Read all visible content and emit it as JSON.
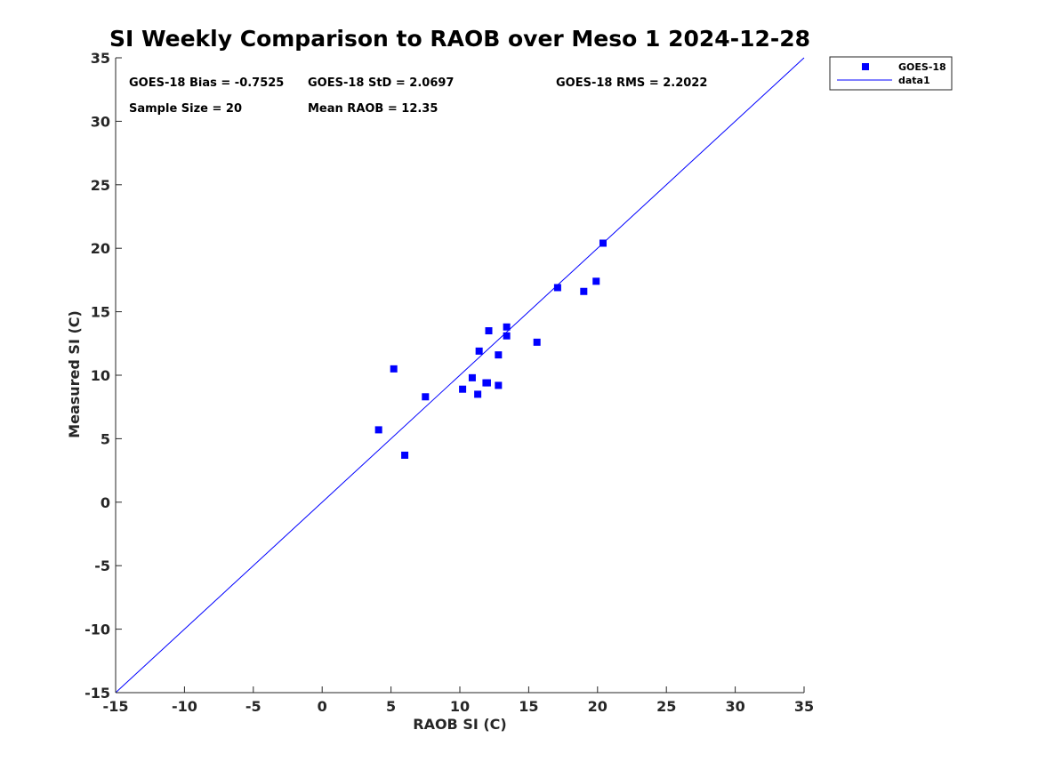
{
  "chart_data": {
    "type": "scatter",
    "title": "SI Weekly Comparison to RAOB over Meso 1 2024-12-28",
    "xlabel": "RAOB SI (C)",
    "ylabel": "Measured SI (C)",
    "xlim": [
      -15,
      35
    ],
    "ylim": [
      -15,
      35
    ],
    "xticks": [
      -15,
      -10,
      -5,
      0,
      5,
      10,
      15,
      20,
      25,
      30,
      35
    ],
    "yticks": [
      -15,
      -10,
      -5,
      0,
      5,
      10,
      15,
      20,
      25,
      30,
      35
    ],
    "grid": false,
    "legend_position": "outside-top-right",
    "series": [
      {
        "name": "GOES-18",
        "type": "scatter",
        "marker": "square",
        "color": "#0000ff",
        "points": [
          {
            "x": 4.1,
            "y": 5.7
          },
          {
            "x": 5.2,
            "y": 10.5
          },
          {
            "x": 6.0,
            "y": 3.7
          },
          {
            "x": 7.5,
            "y": 8.3
          },
          {
            "x": 10.2,
            "y": 8.9
          },
          {
            "x": 10.9,
            "y": 9.8
          },
          {
            "x": 11.3,
            "y": 8.5
          },
          {
            "x": 11.4,
            "y": 11.9
          },
          {
            "x": 11.9,
            "y": 9.4
          },
          {
            "x": 12.0,
            "y": 9.4
          },
          {
            "x": 12.1,
            "y": 13.5
          },
          {
            "x": 12.8,
            "y": 9.2
          },
          {
            "x": 12.8,
            "y": 11.6
          },
          {
            "x": 13.4,
            "y": 13.8
          },
          {
            "x": 13.4,
            "y": 13.1
          },
          {
            "x": 15.6,
            "y": 12.6
          },
          {
            "x": 17.1,
            "y": 16.9
          },
          {
            "x": 19.0,
            "y": 16.6
          },
          {
            "x": 19.9,
            "y": 17.4
          },
          {
            "x": 20.4,
            "y": 20.4
          }
        ]
      },
      {
        "name": "data1",
        "type": "line",
        "color": "#0000ff",
        "x": [
          -15,
          35
        ],
        "y": [
          -15,
          35
        ]
      }
    ],
    "annotations": [
      "GOES-18 Bias = -0.7525",
      "GOES-18 StD = 2.0697",
      "GOES-18 RMS = 2.2022",
      "Sample Size = 20",
      "Mean RAOB = 12.35"
    ]
  }
}
